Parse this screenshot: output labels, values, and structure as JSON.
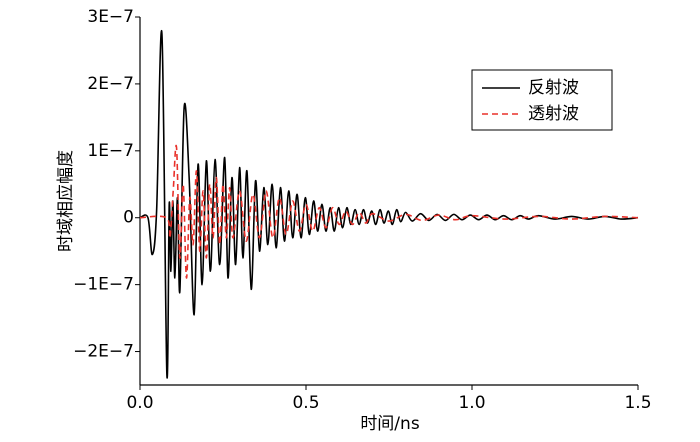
{
  "chart_data": {
    "type": "line",
    "xlabel": "时间/ns",
    "ylabel": "时域相应幅度",
    "xlim": [
      0,
      1.5
    ],
    "ylim": [
      -2.5e-07,
      3e-07
    ],
    "xticks": [
      {
        "value": 0,
        "label": "0.0"
      },
      0.5,
      {
        "value": 1,
        "label": "1.0"
      },
      1.5
    ],
    "yticks": [
      {
        "value": 3e-07,
        "label": "3E−7"
      },
      {
        "value": 2e-07,
        "label": "2E−7"
      },
      {
        "value": 1e-07,
        "label": "1E−7"
      },
      0,
      {
        "value": -1e-07,
        "label": "−1E−7"
      },
      {
        "value": -2e-07,
        "label": "−2E−7"
      }
    ],
    "legend": "upper right",
    "series": [
      {
        "name": "反射波",
        "color": "#000000",
        "style": "solid",
        "x": [
          0,
          0.024,
          0.037,
          0.05,
          0.066,
          0.081,
          0.088,
          0.093,
          0.099,
          0.105,
          0.113,
          0.12,
          0.133,
          0.148,
          0.163,
          0.175,
          0.187,
          0.2,
          0.212,
          0.226,
          0.24,
          0.255,
          0.265,
          0.277,
          0.288,
          0.3,
          0.31,
          0.322,
          0.335,
          0.348,
          0.36,
          0.373,
          0.385,
          0.398,
          0.41,
          0.423,
          0.435,
          0.448,
          0.46,
          0.473,
          0.485,
          0.498,
          0.51,
          0.523,
          0.535,
          0.548,
          0.56,
          0.573,
          0.585,
          0.598,
          0.61,
          0.623,
          0.635,
          0.648,
          0.66,
          0.673,
          0.685,
          0.698,
          0.71,
          0.723,
          0.735,
          0.748,
          0.76,
          0.773,
          0.785,
          0.8,
          0.82,
          0.845,
          0.87,
          0.895,
          0.92,
          0.945,
          0.97,
          0.995,
          1.02,
          1.045,
          1.07,
          1.095,
          1.12,
          1.145,
          1.17,
          1.2,
          1.25,
          1.3,
          1.35,
          1.4,
          1.45,
          1.5
        ],
        "values": [
          0,
          0,
          -5.5e-08,
          1e-08,
          2.75e-07,
          -2.35e-07,
          2e-08,
          -8e-08,
          2.5e-08,
          -9e-08,
          3e-08,
          -1.1e-07,
          1.65e-07,
          6e-08,
          -1.45e-07,
          8e-08,
          -1e-07,
          8.5e-08,
          -8e-08,
          8.7e-08,
          -7e-08,
          9e-08,
          -9e-08,
          6e-08,
          -7e-08,
          7.5e-08,
          -6e-08,
          7e-08,
          -1.07e-07,
          5.5e-08,
          -5e-08,
          4.5e-08,
          -4e-08,
          5e-08,
          -4.5e-08,
          4.5e-08,
          -3.5e-08,
          4e-08,
          -3e-08,
          3.5e-08,
          -3e-08,
          3e-08,
          -2.5e-08,
          2.5e-08,
          -2e-08,
          2e-08,
          -2e-08,
          1.5e-08,
          -2e-08,
          1.5e-08,
          -1.5e-08,
          1.5e-08,
          -1e-08,
          1.2e-08,
          -1e-08,
          1.2e-08,
          -8e-09,
          1e-08,
          -1e-08,
          1.2e-08,
          -8e-09,
          1e-08,
          -1e-08,
          1.2e-08,
          -6e-09,
          8e-09,
          -5e-09,
          6e-09,
          -4e-09,
          5e-09,
          -4e-09,
          5e-09,
          -3e-09,
          4e-09,
          -3e-09,
          4e-09,
          -3e-09,
          3e-09,
          -3e-09,
          3e-09,
          -2e-09,
          3e-09,
          -2e-09,
          2e-09,
          -2e-09,
          2e-09,
          -2e-09,
          0
        ]
      },
      {
        "name": "透射波",
        "color": "#e8312a",
        "style": "dashed",
        "x": [
          0,
          0.08,
          0.09,
          0.1,
          0.11,
          0.12,
          0.13,
          0.14,
          0.15,
          0.16,
          0.17,
          0.18,
          0.19,
          0.2,
          0.21,
          0.22,
          0.23,
          0.24,
          0.25,
          0.26,
          0.27,
          0.28,
          0.3,
          0.32,
          0.34,
          0.36,
          0.38,
          0.4,
          0.42,
          0.44,
          0.46,
          0.48,
          0.5,
          0.52,
          0.54,
          0.56,
          0.58,
          0.6,
          0.62,
          0.64,
          0.66,
          0.68,
          0.7,
          0.75,
          0.8,
          0.85,
          0.9,
          0.95,
          1.0,
          1.1,
          1.2,
          1.3,
          1.4,
          1.5
        ],
        "values": [
          0,
          0,
          -3e-08,
          4e-08,
          1.05e-07,
          -6e-08,
          5e-08,
          -9e-08,
          3e-08,
          -4e-08,
          7e-08,
          -5e-08,
          4e-08,
          -6e-08,
          5e-08,
          -3e-08,
          6e-08,
          -4e-08,
          5e-08,
          -3e-08,
          4.5e-08,
          -3e-08,
          4e-08,
          -3.5e-08,
          3.5e-08,
          -3e-08,
          4e-08,
          -3e-08,
          3e-08,
          -2.5e-08,
          2.5e-08,
          -2e-08,
          2e-08,
          -2e-08,
          1.5e-08,
          -1.5e-08,
          1.5e-08,
          -1e-08,
          1e-08,
          -1e-08,
          8e-09,
          -8e-09,
          6e-09,
          -5e-09,
          5e-09,
          -4e-09,
          4e-09,
          -3e-09,
          3e-09,
          -2e-09,
          2e-09,
          -2e-09,
          2e-09,
          0
        ]
      }
    ]
  }
}
